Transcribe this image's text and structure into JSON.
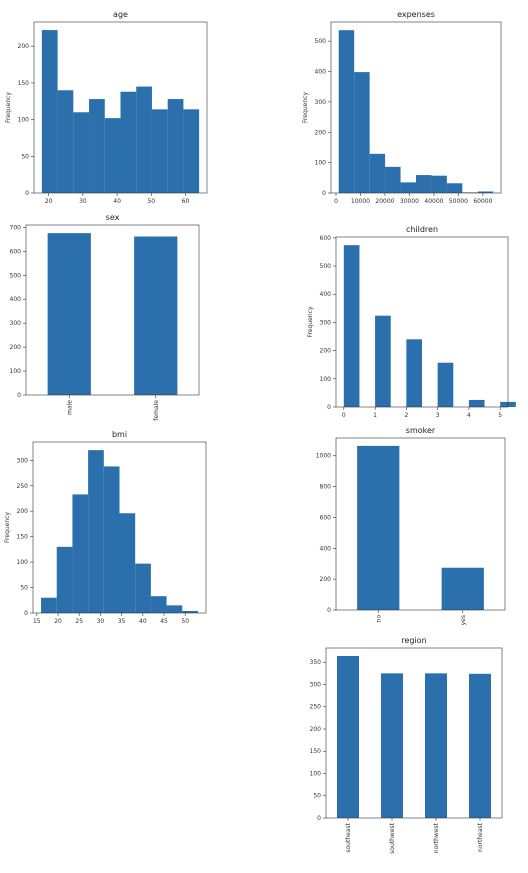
{
  "colors": {
    "bar": "#2b6fad",
    "axis": "#333333",
    "background": "#ffffff"
  },
  "chart_data": [
    {
      "id": "age",
      "type": "bar",
      "title": "age",
      "ylabel": "Frequency",
      "x": [
        18,
        22.6,
        27.2,
        31.8,
        36.4,
        41.0,
        45.6,
        50.2,
        54.8,
        59.4
      ],
      "widths": [
        4.6,
        4.6,
        4.6,
        4.6,
        4.6,
        4.6,
        4.6,
        4.6,
        4.6,
        4.6
      ],
      "values": [
        222,
        140,
        110,
        128,
        102,
        138,
        145,
        114,
        128,
        114
      ],
      "xlim": [
        15.7,
        66.3
      ],
      "ylim": [
        0,
        233
      ],
      "xticks": [
        20,
        30,
        40,
        50,
        60
      ],
      "xticklabels": [
        "20",
        "30",
        "40",
        "50",
        "60"
      ],
      "yticks": [
        0,
        50,
        100,
        150,
        200
      ],
      "yticklabels": [
        "0",
        "50",
        "100",
        "150",
        "200"
      ]
    },
    {
      "id": "expenses",
      "type": "bar",
      "title": "expenses",
      "ylabel": "Frequency",
      "x": [
        1122,
        7433,
        13745,
        20056,
        26368,
        32679,
        38991,
        45302,
        51614,
        57925
      ],
      "widths": [
        6311,
        6311,
        6311,
        6311,
        6311,
        6311,
        6311,
        6311,
        6311,
        6311
      ],
      "values": [
        536,
        398,
        129,
        86,
        35,
        59,
        57,
        32,
        2,
        5
      ],
      "xlim": [
        -2034,
        67395
      ],
      "ylim": [
        0,
        563
      ],
      "xticks": [
        0,
        10000,
        20000,
        30000,
        40000,
        50000,
        60000
      ],
      "xticklabels": [
        "0",
        "10000",
        "20000",
        "30000",
        "40000",
        "50000",
        "60000"
      ],
      "yticks": [
        0,
        100,
        200,
        300,
        400,
        500
      ],
      "yticklabels": [
        "0",
        "100",
        "200",
        "300",
        "400",
        "500"
      ]
    },
    {
      "id": "sex",
      "type": "bar",
      "title": "sex",
      "ylabel": "",
      "x": [
        0,
        1
      ],
      "widths": [
        0.5,
        0.5
      ],
      "values": [
        676,
        662
      ],
      "xlim": [
        -0.5,
        1.5
      ],
      "ylim": [
        0,
        710
      ],
      "xticks": [
        0,
        1
      ],
      "xticklabels": [
        "male",
        "female"
      ],
      "rotate_xticks": true,
      "yticks": [
        0,
        100,
        200,
        300,
        400,
        500,
        600,
        700
      ],
      "yticklabels": [
        "0",
        "100",
        "200",
        "300",
        "400",
        "500",
        "600",
        "700"
      ]
    },
    {
      "id": "children",
      "type": "bar",
      "title": "children",
      "ylabel": "Frequency",
      "x": [
        0,
        1,
        1.5,
        2,
        2.5,
        3,
        3.5,
        4,
        4.5,
        5
      ],
      "widths": [
        0.5,
        0.5,
        0.5,
        0.5,
        0.5,
        0.5,
        0.5,
        0.5,
        0.5,
        0.5
      ],
      "values": [
        574,
        324,
        0,
        240,
        0,
        157,
        0,
        25,
        0,
        18
      ],
      "xlim": [
        -0.25,
        5.25
      ],
      "ylim": [
        0,
        603
      ],
      "xticks": [
        0,
        1,
        2,
        3,
        4,
        5
      ],
      "xticklabels": [
        "0",
        "1",
        "2",
        "3",
        "4",
        "5"
      ],
      "yticks": [
        0,
        100,
        200,
        300,
        400,
        500,
        600
      ],
      "yticklabels": [
        "0",
        "100",
        "200",
        "300",
        "400",
        "500",
        "600"
      ]
    },
    {
      "id": "bmi",
      "type": "bar",
      "title": "bmi",
      "ylabel": "Frequency",
      "x": [
        16.0,
        19.7,
        23.4,
        27.1,
        30.8,
        34.5,
        38.2,
        41.9,
        45.6,
        49.3
      ],
      "widths": [
        3.7,
        3.7,
        3.7,
        3.7,
        3.7,
        3.7,
        3.7,
        3.7,
        3.7,
        3.7
      ],
      "values": [
        30,
        130,
        233,
        320,
        288,
        196,
        97,
        33,
        15,
        4
      ],
      "xlim": [
        14.1,
        54.9
      ],
      "ylim": [
        0,
        336
      ],
      "xticks": [
        15,
        20,
        25,
        30,
        35,
        40,
        45,
        50
      ],
      "xticklabels": [
        "15",
        "20",
        "25",
        "30",
        "35",
        "40",
        "45",
        "50"
      ],
      "yticks": [
        0,
        50,
        100,
        150,
        200,
        250,
        300
      ],
      "yticklabels": [
        "0",
        "50",
        "100",
        "150",
        "200",
        "250",
        "300"
      ]
    },
    {
      "id": "smoker",
      "type": "bar",
      "title": "smoker",
      "ylabel": "",
      "x": [
        0,
        1
      ],
      "widths": [
        0.5,
        0.5
      ],
      "values": [
        1064,
        274
      ],
      "xlim": [
        -0.5,
        1.5
      ],
      "ylim": [
        0,
        1115
      ],
      "xticks": [
        0,
        1
      ],
      "xticklabels": [
        "no",
        "yes"
      ],
      "rotate_xticks": true,
      "yticks": [
        0,
        200,
        400,
        600,
        800,
        1000
      ],
      "yticklabels": [
        "0",
        "200",
        "400",
        "600",
        "800",
        "1000"
      ]
    },
    {
      "id": "region",
      "type": "bar",
      "title": "region",
      "ylabel": "",
      "x": [
        0,
        1,
        2,
        3
      ],
      "widths": [
        0.5,
        0.5,
        0.5,
        0.5
      ],
      "values": [
        364,
        325,
        325,
        324
      ],
      "xlim": [
        -0.5,
        3.5
      ],
      "ylim": [
        0,
        382
      ],
      "xticks": [
        0,
        1,
        2,
        3
      ],
      "xticklabels": [
        "southeast",
        "southwest",
        "northwest",
        "northeast"
      ],
      "rotate_xticks": true,
      "yticks": [
        0,
        50,
        100,
        150,
        200,
        250,
        300,
        350
      ],
      "yticklabels": [
        "0",
        "50",
        "100",
        "150",
        "200",
        "250",
        "300",
        "350"
      ]
    }
  ]
}
